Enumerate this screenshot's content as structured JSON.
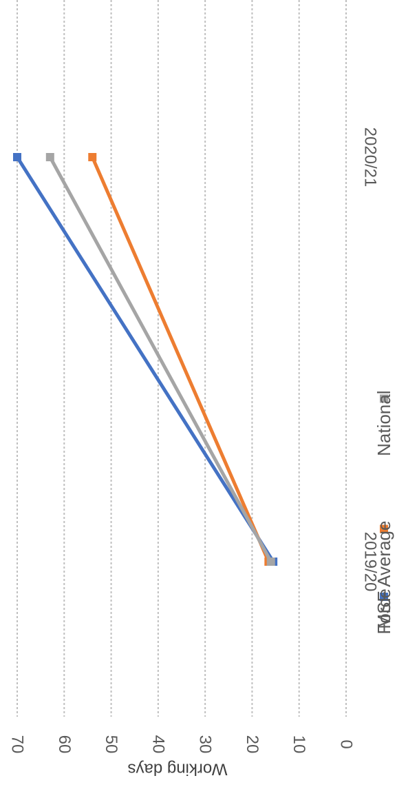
{
  "chart_data": {
    "type": "line",
    "orientation": "rotated-90-clockwise",
    "categories": [
      "2019/20",
      "2020/21"
    ],
    "series": [
      {
        "name": "Force",
        "values": [
          15.5,
          70
        ],
        "color": "#4472C4"
      },
      {
        "name": "MSF Average",
        "values": [
          16.5,
          54
        ],
        "color": "#ED7D31"
      },
      {
        "name": "National",
        "values": [
          16,
          63
        ],
        "color": "#A5A5A5"
      }
    ],
    "ylabel": "Working days",
    "ylim": [
      0,
      70
    ],
    "yticks": [
      0,
      10,
      20,
      30,
      40,
      50,
      60,
      70
    ],
    "grid": true,
    "legend_position": "bottom"
  }
}
